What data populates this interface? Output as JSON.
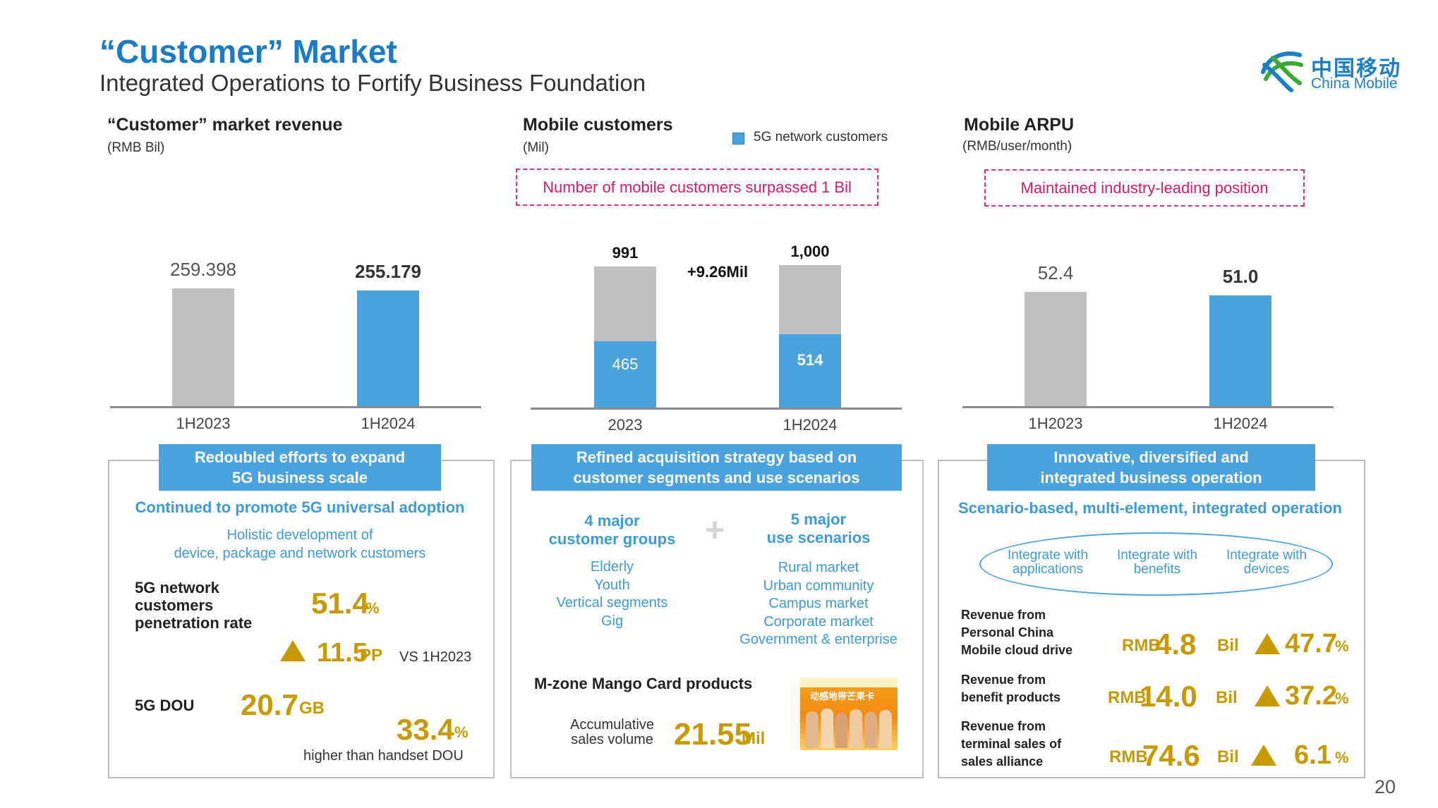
{
  "header": {
    "title": "“Customer” Market",
    "subtitle": "Integrated Operations to Fortify Business Foundation",
    "logo_cn": "中国移动",
    "logo_en": "China Mobile"
  },
  "page_number": "20",
  "colors": {
    "accent": "#4aa3dc",
    "gray_bar": "#c0c0c0",
    "title_blue": "#1a7cc6",
    "gold": "#c79a00",
    "callout": "#d81b6a"
  },
  "chart_data": [
    {
      "type": "bar",
      "title": "“Customer” market revenue",
      "unit": "(RMB Bil)",
      "categories": [
        "1H2023",
        "1H2024"
      ],
      "values": [
        259.398,
        255.179
      ],
      "value_labels": [
        "259.398",
        "255.179"
      ],
      "ylim": [
        0,
        300
      ]
    },
    {
      "type": "bar",
      "stacked": true,
      "title": "Mobile customers",
      "unit": "(Mil)",
      "legend": "5G network customers",
      "callout": "Number of mobile customers surpassed 1 Bil",
      "categories": [
        "2023",
        "1H2024"
      ],
      "series": [
        {
          "name": "5G network customers",
          "values": [
            465,
            514
          ]
        }
      ],
      "totals": [
        991,
        1000
      ],
      "total_labels": [
        "991",
        "1,000"
      ],
      "segment_labels": [
        "465",
        "514"
      ],
      "annotation": "+9.26Mil",
      "ylim": [
        0,
        1100
      ]
    },
    {
      "type": "bar",
      "title": "Mobile ARPU",
      "unit": "(RMB/user/month)",
      "callout": "Maintained industry-leading position",
      "categories": [
        "1H2023",
        "1H2024"
      ],
      "values": [
        52.4,
        51.0
      ],
      "value_labels": [
        "52.4",
        "51.0"
      ],
      "ylim": [
        0,
        60
      ]
    }
  ],
  "panel1": {
    "tab": [
      "Redoubled efforts to expand",
      "5G business scale"
    ],
    "heading": "Continued to promote 5G universal adoption",
    "sub": [
      "Holistic development of",
      "device, package and network customers"
    ],
    "pen_label": [
      "5G network",
      "customers",
      "penetration rate"
    ],
    "pen_value": "51.4",
    "pen_unit": "%",
    "pp_value": "11.5",
    "pp_unit": "PP",
    "pp_vs": "VS 1H2023",
    "dou_label": "5G DOU",
    "dou_value": "20.7",
    "dou_unit": "GB",
    "higher_value": "33.4",
    "higher_unit": "%",
    "higher_text": "higher than handset DOU"
  },
  "panel2": {
    "tab": [
      "Refined acquisition strategy based on",
      "customer segments and use scenarios"
    ],
    "groups_title": [
      "4 major",
      "customer groups"
    ],
    "groups": [
      "Elderly",
      "Youth",
      "Vertical segments",
      "Gig"
    ],
    "plus": "+",
    "scen_title": [
      "5 major",
      "use scenarios"
    ],
    "scenarios": [
      "Rural market",
      "Urban community",
      "Campus market",
      "Corporate market",
      "Government & enterprise"
    ],
    "mzone_title": "M-zone Mango Card products",
    "sales_label": [
      "Accumulative",
      "sales volume"
    ],
    "sales_value": "21.55",
    "sales_unit": "Mil",
    "card_text": "动感地带芒果卡"
  },
  "panel3": {
    "tab": [
      "Innovative, diversified and",
      "integrated business operation"
    ],
    "heading": "Scenario-based, multi-element, integrated operation",
    "ellipse": [
      [
        "Integrate with",
        "applications"
      ],
      [
        "Integrate with",
        "benefits"
      ],
      [
        "Integrate with",
        "devices"
      ]
    ],
    "rows": [
      {
        "label": [
          "Revenue from",
          "Personal China",
          "Mobile cloud drive"
        ],
        "pre": "RMB",
        "value": "4.8",
        "unit": "Bil",
        "growth": "47.7",
        "gunit": "%"
      },
      {
        "label": [
          "Revenue from",
          "benefit products"
        ],
        "pre": "RMB",
        "value": "14.0",
        "unit": "Bil",
        "growth": "37.2",
        "gunit": "%"
      },
      {
        "label": [
          "Revenue from",
          "terminal sales of",
          "sales alliance"
        ],
        "pre": "RMB",
        "value": "74.6",
        "unit": "Bil",
        "growth": "6.1",
        "gunit": "%"
      }
    ]
  }
}
